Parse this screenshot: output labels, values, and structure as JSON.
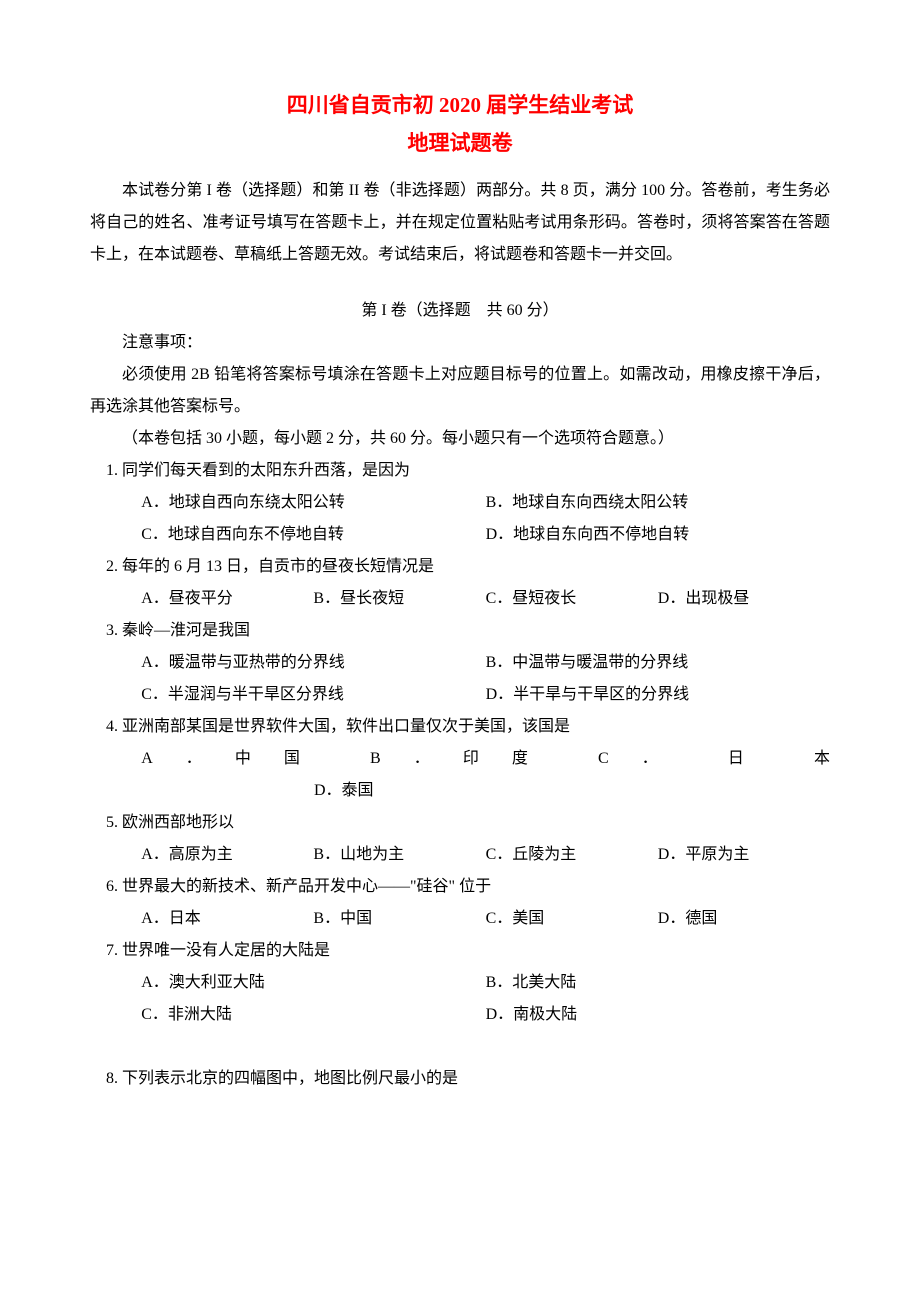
{
  "colors": {
    "title": "#ff0000",
    "text": "#000000",
    "background": "#ffffff"
  },
  "typography": {
    "title_fontsize": 21,
    "body_fontsize": 16,
    "line_height": 2.0,
    "title_font": "KaiTi",
    "body_font": "SimSun"
  },
  "title": "四川省自贡市初 2020 届学生结业考试",
  "subtitle": "地理试题卷",
  "intro": "本试卷分第 I 卷（选择题）和第 II 卷（非选择题）两部分。共 8 页，满分 100 分。答卷前，考生务必将自己的姓名、准考证号填写在答题卡上，并在规定位置粘贴考试用条形码。答卷时，须将答案答在答题卡上，在本试题卷、草稿纸上答题无效。考试结束后，将试题卷和答题卡一并交回。",
  "section_header": "第 I 卷（选择题　共 60 分）",
  "note_label": "注意事项：",
  "instr": "必须使用 2B 铅笔将答案标号填涂在答题卡上对应题目标号的位置上。如需改动，用橡皮擦干净后，再选涂其他答案标号。",
  "scope": "（本卷包括 30 小题，每小题 2 分，共 60 分。每小题只有一个选项符合题意。）",
  "questions": [
    {
      "num": "1.",
      "stem": "同学们每天看到的太阳东升西落，是因为",
      "layout": "2col",
      "options": {
        "A": "A．地球自西向东绕太阳公转",
        "B": "B．地球自东向西绕太阳公转",
        "C": "C．地球自西向东不停地自转",
        "D": "D．地球自东向西不停地自转"
      }
    },
    {
      "num": "2.",
      "stem": "每年的 6 月 13 日，自贡市的昼夜长短情况是",
      "layout": "4col",
      "options": {
        "A": "A．昼夜平分",
        "B": "B．昼长夜短",
        "C": "C．昼短夜长",
        "D": "D．出现极昼"
      }
    },
    {
      "num": "3.",
      "stem": "秦岭—淮河是我国",
      "layout": "2col",
      "options": {
        "A": "A．暖温带与亚热带的分界线",
        "B": "B．中温带与暖温带的分界线",
        "C": "C．半湿润与半干旱区分界线",
        "D": "D．半干旱与干旱区的分界线"
      }
    },
    {
      "num": "4.",
      "stem": "亚洲南部某国是世界软件大国，软件出口量仅次于美国，该国是",
      "layout": "q4",
      "options": {
        "A": "A．中国",
        "B": "B．印度",
        "C_pre": "C．",
        "C_c1": "日",
        "C_c2": "本",
        "D": "D．泰国"
      }
    },
    {
      "num": "5.",
      "stem": "欧洲西部地形以",
      "layout": "4col",
      "options": {
        "A": "A．高原为主",
        "B": "B．山地为主",
        "C": "C．丘陵为主",
        "D": "D．平原为主"
      }
    },
    {
      "num": "6.",
      "stem": "世界最大的新技术、新产品开发中心——\"硅谷\" 位于",
      "layout": "4col",
      "options": {
        "A": "A．日本",
        "B": "B．中国",
        "C": "C．美国",
        "D": "D．德国"
      }
    },
    {
      "num": "7.",
      "stem": "世界唯一没有人定居的大陆是",
      "layout": "2col",
      "options": {
        "A": "A．澳大利亚大陆",
        "B": "B．北美大陆",
        "C": "C．非洲大陆",
        "D": "D．南极大陆"
      }
    },
    {
      "num": "8.",
      "stem": "下列表示北京的四幅图中，地图比例尺最小的是",
      "layout": "none",
      "options": {}
    }
  ]
}
